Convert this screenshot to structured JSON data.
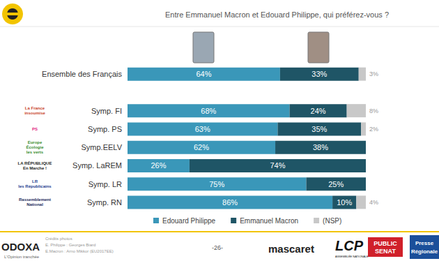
{
  "chart_data": {
    "type": "bar",
    "orientation": "horizontal",
    "stacked": true,
    "data_labels": true,
    "tick_labels": "y",
    "legend": "bottom",
    "title": "Entre Emmanuel Macron et Edouard Philippe, qui préférez-vous ?",
    "categories": [
      "Ensemble des Français",
      null,
      "Symp. FI",
      "Symp. PS",
      "Symp.EELV",
      "Symp. LaREM",
      "Symp. LR",
      "Symp. RN"
    ],
    "xlim": [
      0,
      100
    ],
    "series": [
      {
        "name": "Edouard Philippe",
        "color": "#3a97b9",
        "values": [
          64,
          null,
          68,
          63,
          62,
          26,
          75,
          86
        ],
        "value_labels": [
          "64%",
          null,
          "68%",
          "63%",
          "62%",
          "26%",
          "75%",
          "86%"
        ]
      },
      {
        "name": "Emmanuel Macron",
        "color": "#1f5566",
        "values": [
          33,
          null,
          24,
          35,
          38,
          74,
          25,
          10
        ],
        "value_labels": [
          "33%",
          null,
          "24%",
          "35%",
          "38%",
          "74%",
          "25%",
          "10%"
        ]
      },
      {
        "name": "(NSP)",
        "color": "#c8c8c8",
        "values": [
          3,
          null,
          8,
          2,
          null,
          null,
          null,
          4
        ],
        "value_labels": [
          "3%",
          null,
          "8%",
          "2%",
          null,
          null,
          null,
          "4%"
        ]
      }
    ]
  },
  "party_logos": [
    null,
    null,
    {
      "lines": [
        "La France",
        "insoumise"
      ],
      "color": "#c9462c"
    },
    {
      "lines": [
        "PS"
      ],
      "color": "#e0197d"
    },
    {
      "lines": [
        "Europe",
        "Écologie",
        "les verts"
      ],
      "color": "#3a8d2f"
    },
    {
      "lines": [
        "LA RÉPUBLIQUE",
        "En Marche !"
      ],
      "color": "#222222"
    },
    {
      "lines": [
        "LR",
        "les Républicains"
      ],
      "color": "#1b3d8f"
    },
    {
      "lines": [
        "Rassemblement",
        "National"
      ],
      "color": "#1b2a5c"
    }
  ],
  "footer": {
    "brand": "ODOXA",
    "tagline": "L'Opinion tranchée",
    "credits": [
      "Crédits photos",
      "E. Philippe : Georges Biard",
      "E.Macron : Arno Mikkor (EU2017EE)"
    ],
    "page": "-26-",
    "partners": {
      "mascaret": "mascaret",
      "lcp": "LCP",
      "lcp_sub": "ASSEMBLÉE NATIONALE",
      "public_senat": [
        "PUBLIC",
        "SENAT"
      ],
      "presse": [
        "Presse",
        "Régionale"
      ]
    }
  }
}
